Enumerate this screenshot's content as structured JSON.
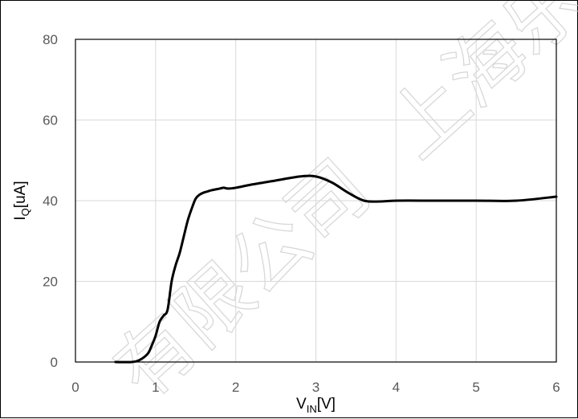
{
  "chart_data": {
    "type": "line",
    "title": "",
    "xlabel": {
      "main": "V",
      "sub": "IN",
      "suffix": "[V]"
    },
    "ylabel": {
      "main": "I",
      "sub": "Q",
      "suffix": "[uA]"
    },
    "xlim": [
      0,
      6
    ],
    "ylim": [
      0,
      80
    ],
    "xticks": [
      0,
      1,
      2,
      3,
      4,
      5,
      6
    ],
    "yticks": [
      0,
      20,
      40,
      60,
      80
    ],
    "grid": true,
    "legend": "none",
    "series": [
      {
        "color": "#000000",
        "x": [
          0.5,
          0.7,
          0.8,
          0.9,
          0.95,
          1.0,
          1.05,
          1.1,
          1.15,
          1.2,
          1.25,
          1.3,
          1.35,
          1.4,
          1.45,
          1.5,
          1.55,
          1.6,
          1.65,
          1.7,
          1.8,
          1.85,
          1.9,
          2.0,
          2.2,
          2.5,
          2.8,
          3.0,
          3.2,
          3.4,
          3.6,
          3.8,
          4.0,
          4.5,
          5.0,
          5.5,
          6.0
        ],
        "y": [
          0,
          0,
          0.5,
          2,
          4,
          6.5,
          10,
          11.5,
          13,
          20,
          24,
          27,
          31,
          35,
          38,
          40.5,
          41.5,
          42,
          42.3,
          42.6,
          43,
          43.2,
          43,
          43.2,
          44,
          45,
          46,
          46,
          44.5,
          42,
          40,
          39.8,
          40,
          40,
          40,
          40,
          41
        ]
      }
    ]
  },
  "watermark": [
    "有限公司",
    "上海乐飞"
  ]
}
